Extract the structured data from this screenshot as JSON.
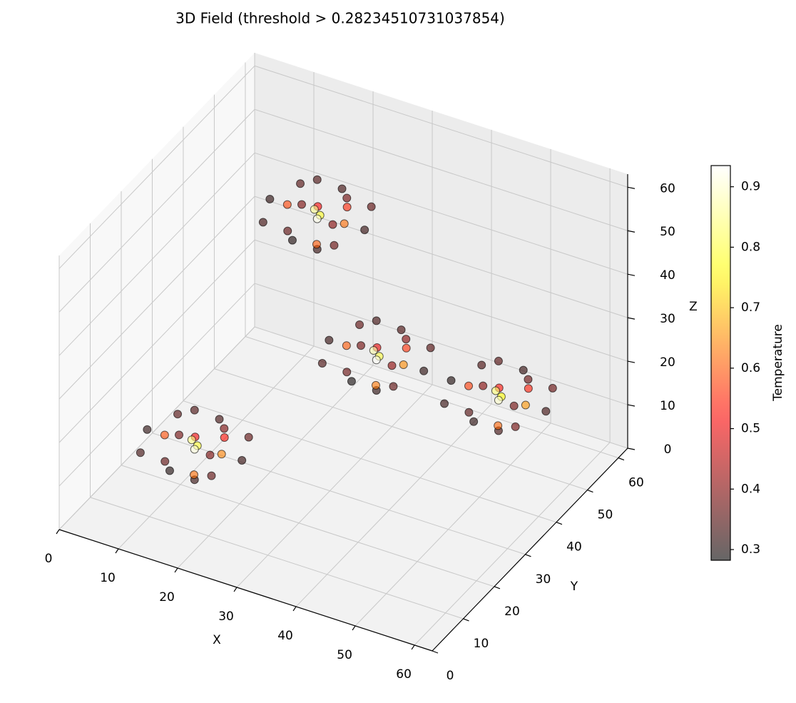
{
  "chart_data": {
    "type": "scatter3d",
    "title": "3D Field (threshold > 0.28234510731037854)",
    "x_label": "X",
    "y_label": "Y",
    "z_label": "Z",
    "xlim": [
      0,
      63
    ],
    "ylim": [
      0,
      63
    ],
    "zlim": [
      0,
      63
    ],
    "xticks": [
      0,
      10,
      20,
      30,
      40,
      50,
      60
    ],
    "yticks": [
      0,
      10,
      20,
      30,
      40,
      50,
      60
    ],
    "zticks": [
      0,
      10,
      20,
      30,
      40,
      50,
      60
    ],
    "grid": true,
    "colormap": "hot",
    "alpha": 0.6,
    "x": [
      12,
      20,
      14,
      20,
      15,
      20,
      14,
      26,
      24,
      16,
      22,
      18,
      23,
      21,
      19,
      20,
      20,
      20,
      25,
      28,
      20,
      26,
      22,
      30,
      24,
      30,
      25,
      30,
      24,
      36,
      34,
      26,
      32,
      28,
      33,
      31,
      29,
      30,
      30,
      30,
      35,
      38,
      30,
      36,
      40,
      48,
      42,
      48,
      43,
      48,
      42,
      54,
      52,
      44,
      50,
      46,
      51,
      49,
      47,
      48,
      48,
      48,
      53,
      56,
      48,
      54,
      7,
      15,
      9,
      15,
      10,
      15,
      9,
      21,
      19,
      11,
      17,
      13,
      18,
      16,
      14,
      15,
      15,
      15,
      20,
      23,
      15,
      21
    ],
    "y": [
      45,
      53,
      51,
      45,
      45,
      50,
      39,
      51,
      47,
      43,
      41,
      49,
      48,
      44,
      46,
      45,
      45,
      40,
      45,
      45,
      37,
      39,
      45,
      53,
      51,
      45,
      45,
      50,
      39,
      51,
      47,
      43,
      41,
      49,
      48,
      44,
      46,
      45,
      45,
      40,
      45,
      45,
      37,
      39,
      50,
      58,
      56,
      50,
      50,
      55,
      44,
      56,
      52,
      48,
      46,
      54,
      53,
      49,
      51,
      50,
      50,
      45,
      50,
      50,
      42,
      44,
      15,
      23,
      21,
      15,
      15,
      20,
      9,
      21,
      17,
      13,
      11,
      19,
      18,
      14,
      16,
      15,
      15,
      10,
      15,
      15,
      7,
      9
    ],
    "z": [
      48,
      48,
      48,
      40,
      42,
      42,
      48,
      48,
      50,
      50,
      45,
      46,
      45,
      49,
      48,
      47,
      56,
      54,
      54,
      48,
      48,
      48,
      20,
      20,
      20,
      12,
      14,
      14,
      20,
      20,
      22,
      22,
      17,
      18,
      17,
      21,
      20,
      19,
      28,
      26,
      26,
      20,
      20,
      20,
      15,
      15,
      15,
      7,
      9,
      9,
      15,
      15,
      17,
      17,
      12,
      13,
      12,
      16,
      15,
      14,
      23,
      21,
      21,
      15,
      15,
      15,
      15,
      15,
      15,
      7,
      9,
      9,
      15,
      15,
      17,
      17,
      12,
      13,
      12,
      16,
      15,
      14,
      23,
      21,
      21,
      15,
      15,
      15
    ],
    "values": [
      0.31,
      0.33,
      0.35,
      0.32,
      0.36,
      0.4,
      0.33,
      0.36,
      0.55,
      0.58,
      0.6,
      0.52,
      0.62,
      0.78,
      0.86,
      0.92,
      0.34,
      0.39,
      0.38,
      0.32,
      0.3,
      0.37,
      0.32,
      0.34,
      0.36,
      0.31,
      0.37,
      0.41,
      0.34,
      0.35,
      0.56,
      0.6,
      0.63,
      0.5,
      0.65,
      0.8,
      0.88,
      0.93,
      0.33,
      0.38,
      0.4,
      0.31,
      0.29,
      0.36,
      0.3,
      0.32,
      0.34,
      0.33,
      0.35,
      0.38,
      0.32,
      0.37,
      0.54,
      0.57,
      0.61,
      0.53,
      0.66,
      0.76,
      0.84,
      0.9,
      0.35,
      0.4,
      0.37,
      0.33,
      0.31,
      0.38,
      0.31,
      0.33,
      0.35,
      0.32,
      0.36,
      0.39,
      0.33,
      0.36,
      0.53,
      0.59,
      0.62,
      0.51,
      0.64,
      0.79,
      0.85,
      0.91,
      0.34,
      0.38,
      0.39,
      0.32,
      0.3,
      0.36
    ],
    "colorbar": {
      "label": "Temperature",
      "clim": [
        0.2823,
        0.935
      ],
      "ticks": [
        0.3,
        0.4,
        0.5,
        0.6,
        0.7,
        0.8,
        0.9
      ]
    }
  }
}
